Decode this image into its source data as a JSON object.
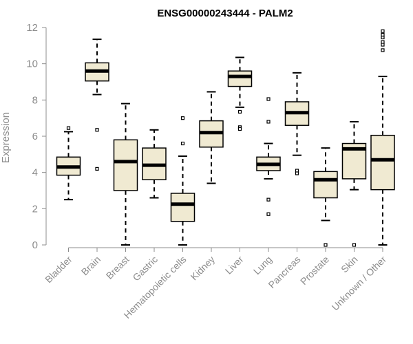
{
  "chart_data": {
    "type": "boxplot",
    "title": "ENSG00000243444 - PALM2",
    "xlabel": "",
    "ylabel": "Expression",
    "ylim": [
      0,
      12
    ],
    "yticks": [
      0,
      2,
      4,
      6,
      8,
      10,
      12
    ],
    "grid": false,
    "legend": "none",
    "box_color": "#f0ead2",
    "categories": [
      "Bladder",
      "Brain",
      "Breast",
      "Gastric",
      "Hematopoietic cells",
      "Kidney",
      "Liver",
      "Lung",
      "Pancreas",
      "Prostate",
      "Skin",
      "Unknown / Other"
    ],
    "boxes": [
      {
        "category": "Bladder",
        "q1": 3.85,
        "median": 4.3,
        "q3": 4.85,
        "whisker_low": 2.5,
        "whisker_high": 6.25,
        "outliers": [
          6.45
        ]
      },
      {
        "category": "Brain",
        "q1": 9.05,
        "median": 9.6,
        "q3": 10.05,
        "whisker_low": 8.3,
        "whisker_high": 11.35,
        "outliers": [
          6.35,
          4.2
        ]
      },
      {
        "category": "Breast",
        "q1": 3.0,
        "median": 4.6,
        "q3": 5.8,
        "whisker_low": 0.0,
        "whisker_high": 7.8,
        "outliers": []
      },
      {
        "category": "Gastric",
        "q1": 3.6,
        "median": 4.4,
        "q3": 5.35,
        "whisker_low": 2.6,
        "whisker_high": 6.35,
        "outliers": []
      },
      {
        "category": "Hematopoietic cells",
        "q1": 1.3,
        "median": 2.25,
        "q3": 2.85,
        "whisker_low": 0.0,
        "whisker_high": 4.9,
        "outliers": [
          7.0,
          5.6
        ]
      },
      {
        "category": "Kidney",
        "q1": 5.4,
        "median": 6.2,
        "q3": 6.85,
        "whisker_low": 3.4,
        "whisker_high": 8.45,
        "outliers": []
      },
      {
        "category": "Liver",
        "q1": 8.75,
        "median": 9.3,
        "q3": 9.6,
        "whisker_low": 7.6,
        "whisker_high": 10.35,
        "outliers": [
          7.35,
          6.5,
          6.4
        ]
      },
      {
        "category": "Lung",
        "q1": 4.1,
        "median": 4.45,
        "q3": 4.85,
        "whisker_low": 3.65,
        "whisker_high": 5.6,
        "outliers": [
          8.05,
          6.8,
          2.5,
          1.7
        ]
      },
      {
        "category": "Pancreas",
        "q1": 6.6,
        "median": 7.3,
        "q3": 7.9,
        "whisker_low": 4.95,
        "whisker_high": 9.5,
        "outliers": [
          4.1,
          3.95
        ]
      },
      {
        "category": "Prostate",
        "q1": 2.6,
        "median": 3.6,
        "q3": 4.05,
        "whisker_low": 1.35,
        "whisker_high": 5.35,
        "outliers": [
          0.0
        ]
      },
      {
        "category": "Skin",
        "q1": 3.65,
        "median": 5.3,
        "q3": 5.6,
        "whisker_low": 3.05,
        "whisker_high": 6.8,
        "outliers": [
          0.0
        ]
      },
      {
        "category": "Unknown / Other",
        "q1": 3.05,
        "median": 4.7,
        "q3": 6.05,
        "whisker_low": 0.0,
        "whisker_high": 9.3,
        "outliers": [
          11.8,
          11.6,
          11.45,
          11.2,
          11.05,
          10.75
        ]
      }
    ]
  }
}
